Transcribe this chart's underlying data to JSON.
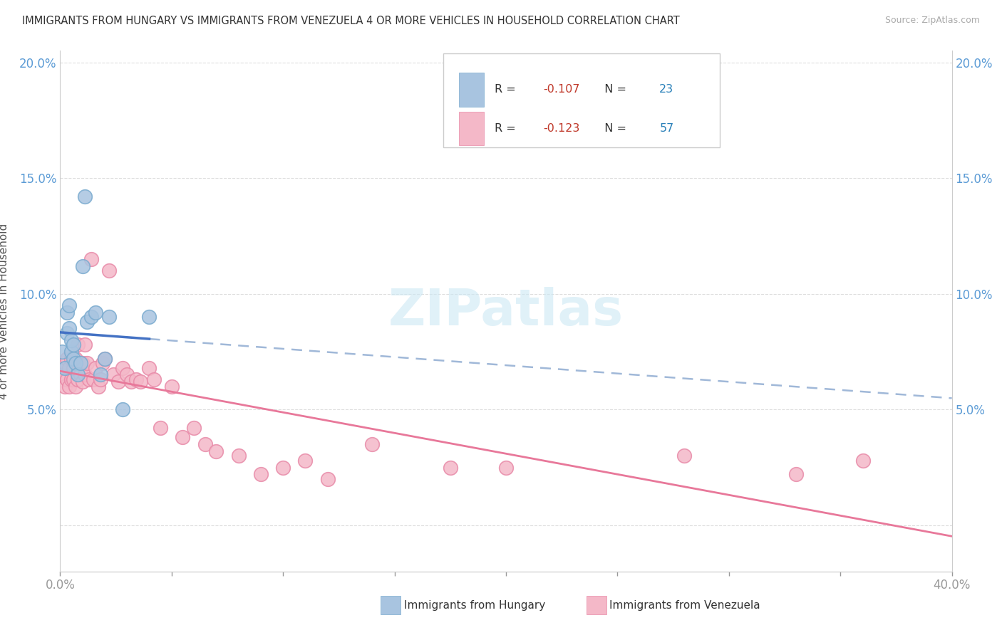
{
  "title": "IMMIGRANTS FROM HUNGARY VS IMMIGRANTS FROM VENEZUELA 4 OR MORE VEHICLES IN HOUSEHOLD CORRELATION CHART",
  "source": "Source: ZipAtlas.com",
  "ylabel": "4 or more Vehicles in Household",
  "xlim": [
    0.0,
    0.4
  ],
  "ylim": [
    -0.02,
    0.205
  ],
  "xticks": [
    0.0,
    0.05,
    0.1,
    0.15,
    0.2,
    0.25,
    0.3,
    0.35,
    0.4
  ],
  "xtick_labels": [
    "0.0%",
    "",
    "",
    "",
    "",
    "",
    "",
    "",
    "40.0%"
  ],
  "yticks": [
    0.0,
    0.05,
    0.1,
    0.15,
    0.2
  ],
  "ytick_labels": [
    "",
    "5.0%",
    "10.0%",
    "15.0%",
    "20.0%"
  ],
  "hungary_color": "#a8c4e0",
  "hungary_edge_color": "#7aabcf",
  "venezuela_color": "#f4b8c8",
  "venezuela_edge_color": "#e88aa8",
  "hungary_line_color": "#4472c4",
  "venezuela_line_color": "#e8789a",
  "dashed_line_color": "#a0b8d8",
  "hungary_R": -0.107,
  "hungary_N": 23,
  "venezuela_R": -0.123,
  "venezuela_N": 57,
  "hungary_scatter_x": [
    0.001,
    0.002,
    0.003,
    0.003,
    0.004,
    0.004,
    0.005,
    0.005,
    0.006,
    0.006,
    0.007,
    0.008,
    0.009,
    0.01,
    0.011,
    0.012,
    0.014,
    0.016,
    0.018,
    0.02,
    0.022,
    0.028,
    0.04
  ],
  "hungary_scatter_y": [
    0.075,
    0.068,
    0.083,
    0.092,
    0.085,
    0.095,
    0.075,
    0.08,
    0.072,
    0.078,
    0.07,
    0.065,
    0.07,
    0.112,
    0.142,
    0.088,
    0.09,
    0.092,
    0.065,
    0.072,
    0.09,
    0.05,
    0.09
  ],
  "venezuela_scatter_x": [
    0.001,
    0.002,
    0.002,
    0.003,
    0.003,
    0.004,
    0.004,
    0.005,
    0.005,
    0.006,
    0.006,
    0.007,
    0.007,
    0.008,
    0.008,
    0.009,
    0.009,
    0.01,
    0.01,
    0.011,
    0.011,
    0.012,
    0.013,
    0.014,
    0.015,
    0.016,
    0.017,
    0.018,
    0.019,
    0.02,
    0.022,
    0.024,
    0.026,
    0.028,
    0.03,
    0.032,
    0.034,
    0.036,
    0.04,
    0.042,
    0.045,
    0.05,
    0.055,
    0.06,
    0.065,
    0.07,
    0.08,
    0.09,
    0.1,
    0.11,
    0.12,
    0.14,
    0.175,
    0.2,
    0.28,
    0.33,
    0.36
  ],
  "venezuela_scatter_y": [
    0.065,
    0.06,
    0.07,
    0.063,
    0.072,
    0.06,
    0.068,
    0.063,
    0.072,
    0.063,
    0.068,
    0.06,
    0.072,
    0.063,
    0.078,
    0.068,
    0.065,
    0.07,
    0.062,
    0.078,
    0.065,
    0.07,
    0.063,
    0.115,
    0.063,
    0.068,
    0.06,
    0.063,
    0.07,
    0.072,
    0.11,
    0.065,
    0.062,
    0.068,
    0.065,
    0.062,
    0.063,
    0.062,
    0.068,
    0.063,
    0.042,
    0.06,
    0.038,
    0.042,
    0.035,
    0.032,
    0.03,
    0.022,
    0.025,
    0.028,
    0.02,
    0.035,
    0.025,
    0.025,
    0.03,
    0.022,
    0.028
  ],
  "background_color": "#ffffff",
  "grid_color": "#dddddd",
  "axis_label_color": "#5b9bd5",
  "title_color": "#333333",
  "watermark_text": "ZIPatlas",
  "legend_text_color": "#333333",
  "r_value_color": "#c0392b",
  "n_value_color": "#2980b9"
}
